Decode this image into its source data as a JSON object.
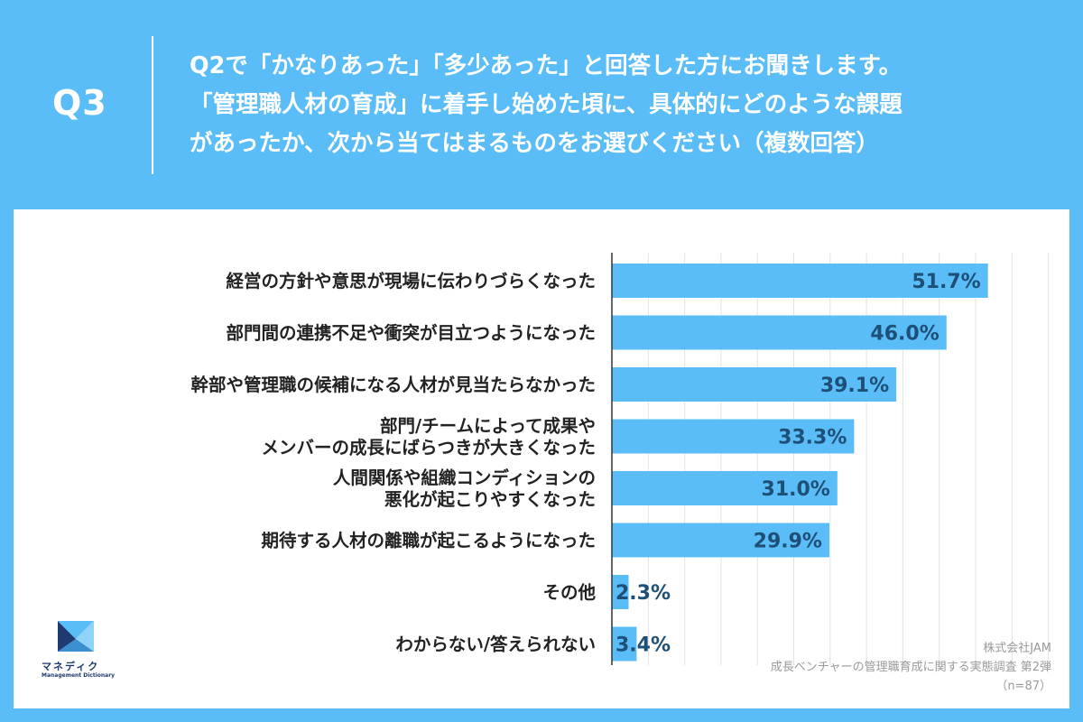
{
  "header": {
    "q_label": "Q3",
    "question_lines": [
      "Q2で「かなりあった」「多少あった」と回答した方にお聞きします。",
      "「管理職人材の育成」に着手し始めた頃に、具体的にどのような課題",
      "があったか、次から当てはまるものをお選びください（複数回答）"
    ]
  },
  "chart_data": {
    "type": "bar",
    "orientation": "horizontal",
    "title": "",
    "xlabel": "",
    "ylabel": "",
    "xlim": [
      0,
      60
    ],
    "grid": true,
    "categories": [
      [
        "経営の方針や意思が現場に伝わりづらくなった"
      ],
      [
        "部門間の連携不足や衝突が目立つようになった"
      ],
      [
        "幹部や管理職の候補になる人材が見当たらなかった"
      ],
      [
        "部門/チームによって成果や",
        "メンバーの成長にばらつきが大きくなった"
      ],
      [
        "人間関係や組織コンディションの",
        "悪化が起こりやすくなった"
      ],
      [
        "期待する人材の離職が起こるようになった"
      ],
      [
        "その他"
      ],
      [
        "わからない/答えられない"
      ]
    ],
    "values": [
      51.7,
      46.0,
      39.1,
      33.3,
      31.0,
      29.9,
      2.3,
      3.4
    ],
    "value_labels": [
      "51.7%",
      "46.0%",
      "39.1%",
      "33.3%",
      "31.0%",
      "29.9%",
      "2.3%",
      "3.4%"
    ],
    "bar_color": "#5bbdf7",
    "label_color": "#1e4f77"
  },
  "logo": {
    "name": "マネディク",
    "sub": "Management Dictionary"
  },
  "source": {
    "company": "株式会社JAM",
    "survey": "成長ベンチャーの管理職育成に関する実態調査 第2弾",
    "sample": "（n=87）"
  }
}
